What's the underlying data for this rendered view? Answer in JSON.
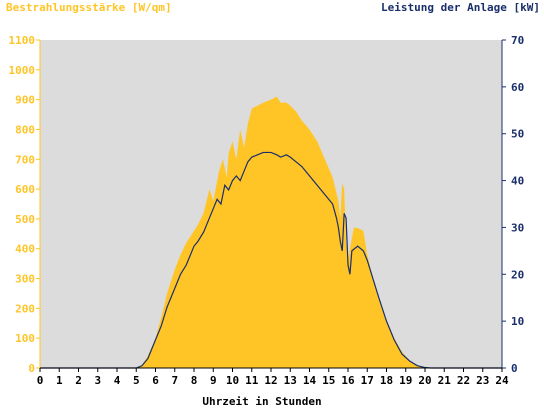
{
  "chart_data": {
    "type": "area",
    "ylabel_left": "Bestrahlungsstärke [W/qm]",
    "ylabel_right": "Leistung der Anlage [kW]",
    "xlabel": "Uhrzeit in Stunden",
    "xlim": [
      0,
      24
    ],
    "ylim_left": [
      0,
      1100
    ],
    "ylim_right": [
      0,
      70
    ],
    "x_ticks": [
      "0",
      "1",
      "2",
      "3",
      "4",
      "5",
      "6",
      "7",
      "8",
      "9",
      "10",
      "11",
      "12",
      "13",
      "14",
      "15",
      "16",
      "17",
      "18",
      "19",
      "20",
      "21",
      "22",
      "23",
      "24"
    ],
    "y_left_ticks": [
      "0",
      "100",
      "200",
      "300",
      "400",
      "500",
      "600",
      "700",
      "800",
      "900",
      "1000",
      "1100"
    ],
    "y_right_ticks": [
      "0",
      "10",
      "20",
      "30",
      "40",
      "50",
      "60",
      "70"
    ],
    "grid": false,
    "colors": {
      "plot_background": "#dcdcdc",
      "irradiance_fill": "#ffc526",
      "power_line": "#1a2f6b",
      "left_axis_text": "#ffc526",
      "right_axis_text": "#1a2f6b"
    },
    "series": [
      {
        "axis": "left",
        "style": "area",
        "x": [
          0,
          5.0,
          5.3,
          5.6,
          6.0,
          6.3,
          6.6,
          7.0,
          7.3,
          7.6,
          8.0,
          8.2,
          8.5,
          8.8,
          9.0,
          9.3,
          9.5,
          9.7,
          9.8,
          10.0,
          10.2,
          10.4,
          10.6,
          10.8,
          11.0,
          11.3,
          11.6,
          12.0,
          12.3,
          12.5,
          12.8,
          13.0,
          13.3,
          13.6,
          14.0,
          14.4,
          14.8,
          15.2,
          15.5,
          15.6,
          15.7,
          15.8,
          15.9,
          16.0,
          16.1,
          16.3,
          16.5,
          16.8,
          17.0,
          17.3,
          17.6,
          18.0,
          18.4,
          18.8,
          19.2,
          19.6,
          20.0,
          20.3,
          24
        ],
        "values": [
          0,
          0,
          10,
          40,
          100,
          170,
          250,
          330,
          380,
          420,
          460,
          480,
          520,
          600,
          560,
          660,
          700,
          640,
          720,
          760,
          700,
          800,
          740,
          820,
          870,
          880,
          890,
          900,
          910,
          890,
          890,
          880,
          860,
          830,
          800,
          760,
          700,
          640,
          560,
          500,
          620,
          600,
          420,
          360,
          400,
          470,
          470,
          460,
          380,
          300,
          230,
          160,
          100,
          55,
          25,
          8,
          2,
          0,
          0
        ]
      },
      {
        "axis": "right",
        "style": "line",
        "x": [
          0,
          5.0,
          5.3,
          5.6,
          6.0,
          6.3,
          6.6,
          7.0,
          7.3,
          7.6,
          8.0,
          8.2,
          8.5,
          8.8,
          9.0,
          9.2,
          9.4,
          9.6,
          9.8,
          10.0,
          10.2,
          10.4,
          10.6,
          10.8,
          11.0,
          11.3,
          11.6,
          12.0,
          12.3,
          12.5,
          12.8,
          13.0,
          13.3,
          13.6,
          14.0,
          14.4,
          14.8,
          15.2,
          15.4,
          15.5,
          15.6,
          15.7,
          15.8,
          15.9,
          16.0,
          16.1,
          16.2,
          16.5,
          16.8,
          17.0,
          17.3,
          17.6,
          18.0,
          18.4,
          18.8,
          19.2,
          19.6,
          20.0,
          20.3,
          24
        ],
        "values": [
          0,
          0,
          0.5,
          2,
          6,
          9,
          13,
          17,
          20,
          22,
          26,
          27,
          29,
          32,
          34,
          36,
          35,
          39,
          38,
          40,
          41,
          40,
          42,
          44,
          45,
          45.5,
          46,
          46,
          45.5,
          45,
          45.5,
          45,
          44,
          43,
          41,
          39,
          37,
          35,
          32,
          30,
          27,
          25,
          33,
          32,
          22,
          20,
          25,
          26,
          25,
          23,
          19,
          15,
          10,
          6,
          3,
          1.5,
          0.5,
          0.1,
          0,
          0
        ]
      }
    ]
  }
}
